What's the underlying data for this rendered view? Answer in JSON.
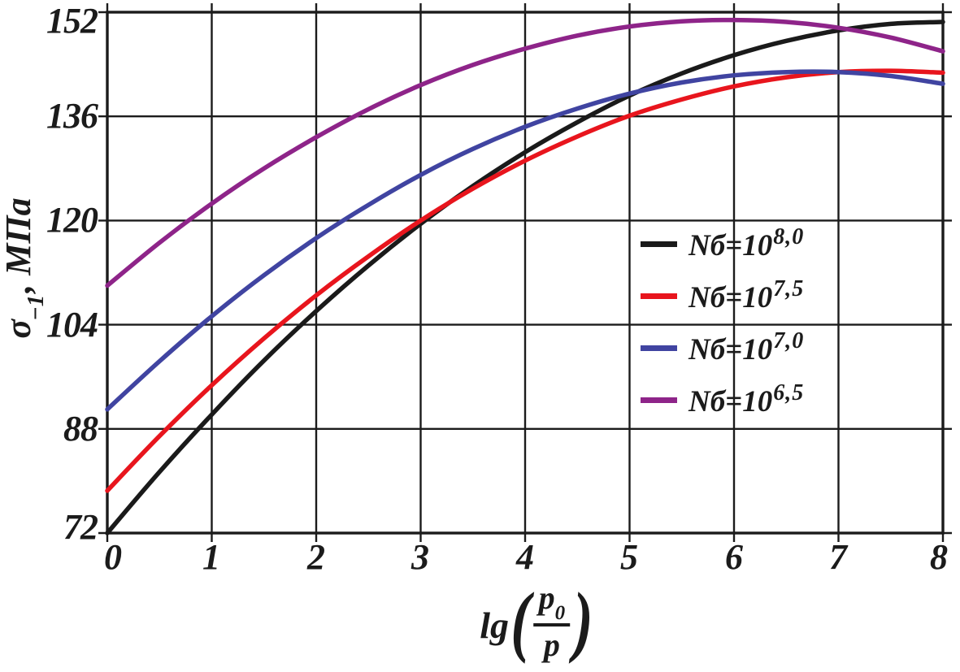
{
  "chart_data": {
    "type": "line",
    "title": "",
    "xlabel": "lg(p0/p)",
    "ylabel": "σ−1, МПа",
    "xlabel_parts": {
      "prefix": "lg",
      "open_paren": "(",
      "numerator": "p",
      "numerator_sub": "0",
      "denominator": "p",
      "close_paren": ")"
    },
    "ylabel_parts": {
      "symbol": "σ",
      "subscript": "−1",
      "unit": ", МПа"
    },
    "xlim": [
      0,
      8
    ],
    "ylim": [
      72,
      152
    ],
    "x_ticks": [
      "0",
      "1",
      "2",
      "3",
      "4",
      "5",
      "6",
      "7",
      "8"
    ],
    "y_ticks": [
      "72",
      "88",
      "104",
      "120",
      "136",
      "152"
    ],
    "grid": true,
    "legend_position": "inside-right",
    "axis_color": "#1b1b1b",
    "background_color": "#ffffff",
    "x": [
      0,
      0.5,
      1,
      1.5,
      2,
      2.5,
      3,
      3.5,
      4,
      4.5,
      5,
      5.5,
      6,
      6.5,
      7,
      7.5,
      8
    ],
    "series": [
      {
        "name": "Nб=10^8,0",
        "label_base": "Nб=10",
        "label_sup": "8,0",
        "color": "#1a1a1a",
        "values": [
          72,
          81.4,
          90.2,
          98.5,
          106.1,
          113.1,
          119.5,
          125.3,
          130.5,
          135.1,
          139.2,
          142.6,
          145.4,
          147.6,
          149.2,
          150.2,
          150.5
        ]
      },
      {
        "name": "Nб=10^7,5",
        "label_base": "Nб=10",
        "label_sup": "7,5",
        "color": "#e8151d",
        "values": [
          78.5,
          86.9,
          94.7,
          101.9,
          108.5,
          114.5,
          120,
          124.9,
          129.2,
          132.9,
          136.1,
          138.6,
          140.6,
          142,
          142.8,
          143,
          142.7
        ]
      },
      {
        "name": "Nб=10^7,0",
        "label_base": "Nб=10",
        "label_sup": "7,0",
        "color": "#4044a1",
        "values": [
          91,
          98.4,
          105.3,
          111.6,
          117.3,
          122.4,
          127,
          131,
          134.4,
          137.2,
          139.5,
          141.2,
          142.3,
          142.8,
          142.8,
          142.2,
          141
        ]
      },
      {
        "name": "Nб=10^6,5",
        "label_base": "Nб=10",
        "label_sup": "6,5",
        "color": "#8e2489",
        "values": [
          110,
          116.6,
          122.6,
          128,
          132.8,
          137.1,
          140.8,
          143.9,
          146.4,
          148.4,
          149.8,
          150.6,
          150.8,
          150.5,
          149.6,
          148.1,
          146
        ]
      }
    ]
  }
}
